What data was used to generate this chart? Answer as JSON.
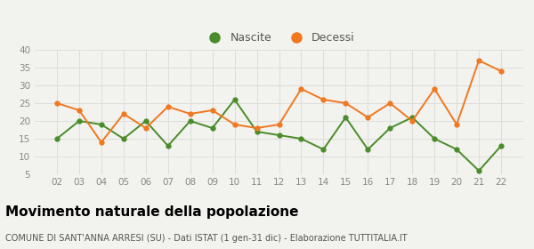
{
  "years": [
    "02",
    "03",
    "04",
    "05",
    "06",
    "07",
    "08",
    "09",
    "10",
    "11",
    "12",
    "13",
    "14",
    "15",
    "16",
    "17",
    "18",
    "19",
    "20",
    "21",
    "22"
  ],
  "nascite": [
    15,
    20,
    19,
    15,
    20,
    13,
    20,
    18,
    26,
    17,
    16,
    15,
    12,
    21,
    12,
    18,
    21,
    15,
    12,
    6,
    13
  ],
  "decessi": [
    25,
    23,
    14,
    22,
    18,
    24,
    22,
    23,
    19,
    18,
    19,
    29,
    26,
    25,
    21,
    25,
    20,
    29,
    19,
    37,
    34
  ],
  "nascite_color": "#4a8c2a",
  "decessi_color": "#f07820",
  "title": "Movimento naturale della popolazione",
  "subtitle": "COMUNE DI SANT'ANNA ARRESI (SU) - Dati ISTAT (1 gen-31 dic) - Elaborazione TUTTITALIA.IT",
  "ylim": [
    5,
    40
  ],
  "yticks": [
    5,
    10,
    15,
    20,
    25,
    30,
    35,
    40
  ],
  "legend_nascite": "Nascite",
  "legend_decessi": "Decessi",
  "background_color": "#f2f2ee",
  "grid_color": "#dddddd",
  "tick_label_color": "#888888",
  "title_fontsize": 11,
  "subtitle_fontsize": 7,
  "tick_fontsize": 7.5,
  "legend_fontsize": 9
}
